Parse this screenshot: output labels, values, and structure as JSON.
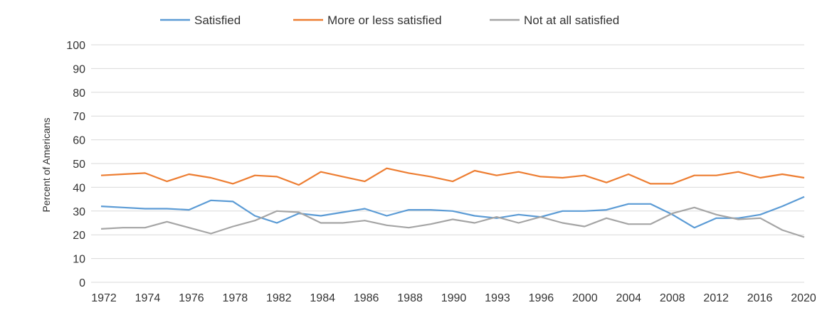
{
  "chart_data": {
    "type": "line",
    "xlabel": "",
    "ylabel": "Percent of Americans",
    "ylim": [
      0,
      100
    ],
    "yticks": [
      "0",
      "10",
      "20",
      "30",
      "40",
      "50",
      "60",
      "70",
      "80",
      "90",
      "100"
    ],
    "x_tick_labels": [
      "1972",
      "1974",
      "1976",
      "1978",
      "1982",
      "1984",
      "1986",
      "1988",
      "1990",
      "1993",
      "1996",
      "2000",
      "2004",
      "2008",
      "2012",
      "2016",
      "2020"
    ],
    "grid": true,
    "legend_position": "top",
    "x": [
      "1972",
      "1973",
      "1974",
      "1975",
      "1976",
      "1977",
      "1978",
      "1980",
      "1982",
      "1983",
      "1984",
      "1985",
      "1986",
      "1987",
      "1988",
      "1989",
      "1990",
      "1991",
      "1993",
      "1994",
      "1996",
      "1998",
      "2000",
      "2002",
      "2004",
      "2006",
      "2008",
      "2010",
      "2012",
      "2014",
      "2016",
      "2018",
      "2021"
    ],
    "series": [
      {
        "name": "Satisfied",
        "color": "#5b9bd5",
        "values": [
          32,
          31.5,
          31,
          31,
          30.5,
          34.5,
          34,
          28,
          25,
          29,
          28,
          29.5,
          31,
          28,
          30.5,
          30.5,
          30,
          28,
          27,
          28.5,
          27.5,
          30,
          30,
          30.5,
          33,
          33,
          28.5,
          23,
          27,
          27,
          28.5,
          32,
          36
        ]
      },
      {
        "name": "More or less satisfied",
        "color": "#ed7d31",
        "values": [
          45,
          45.5,
          46,
          42.5,
          45.5,
          44,
          41.5,
          45,
          44.5,
          41,
          46.5,
          44.5,
          42.5,
          48,
          46,
          44.5,
          42.5,
          47,
          45,
          46.5,
          44.5,
          44,
          45,
          42,
          45.5,
          41.5,
          41.5,
          45,
          45,
          46.5,
          44,
          45.5,
          44
        ]
      },
      {
        "name": "Not at all satisfied",
        "color": "#a5a5a5",
        "values": [
          22.5,
          23,
          23,
          25.5,
          23,
          20.5,
          23.5,
          26,
          30,
          29.5,
          25,
          25,
          26,
          24,
          23,
          24.5,
          26.5,
          25,
          27.5,
          25,
          27.5,
          25,
          23.5,
          27,
          24.5,
          24.5,
          29,
          31.5,
          28.5,
          26.5,
          27,
          22,
          19
        ]
      }
    ]
  }
}
